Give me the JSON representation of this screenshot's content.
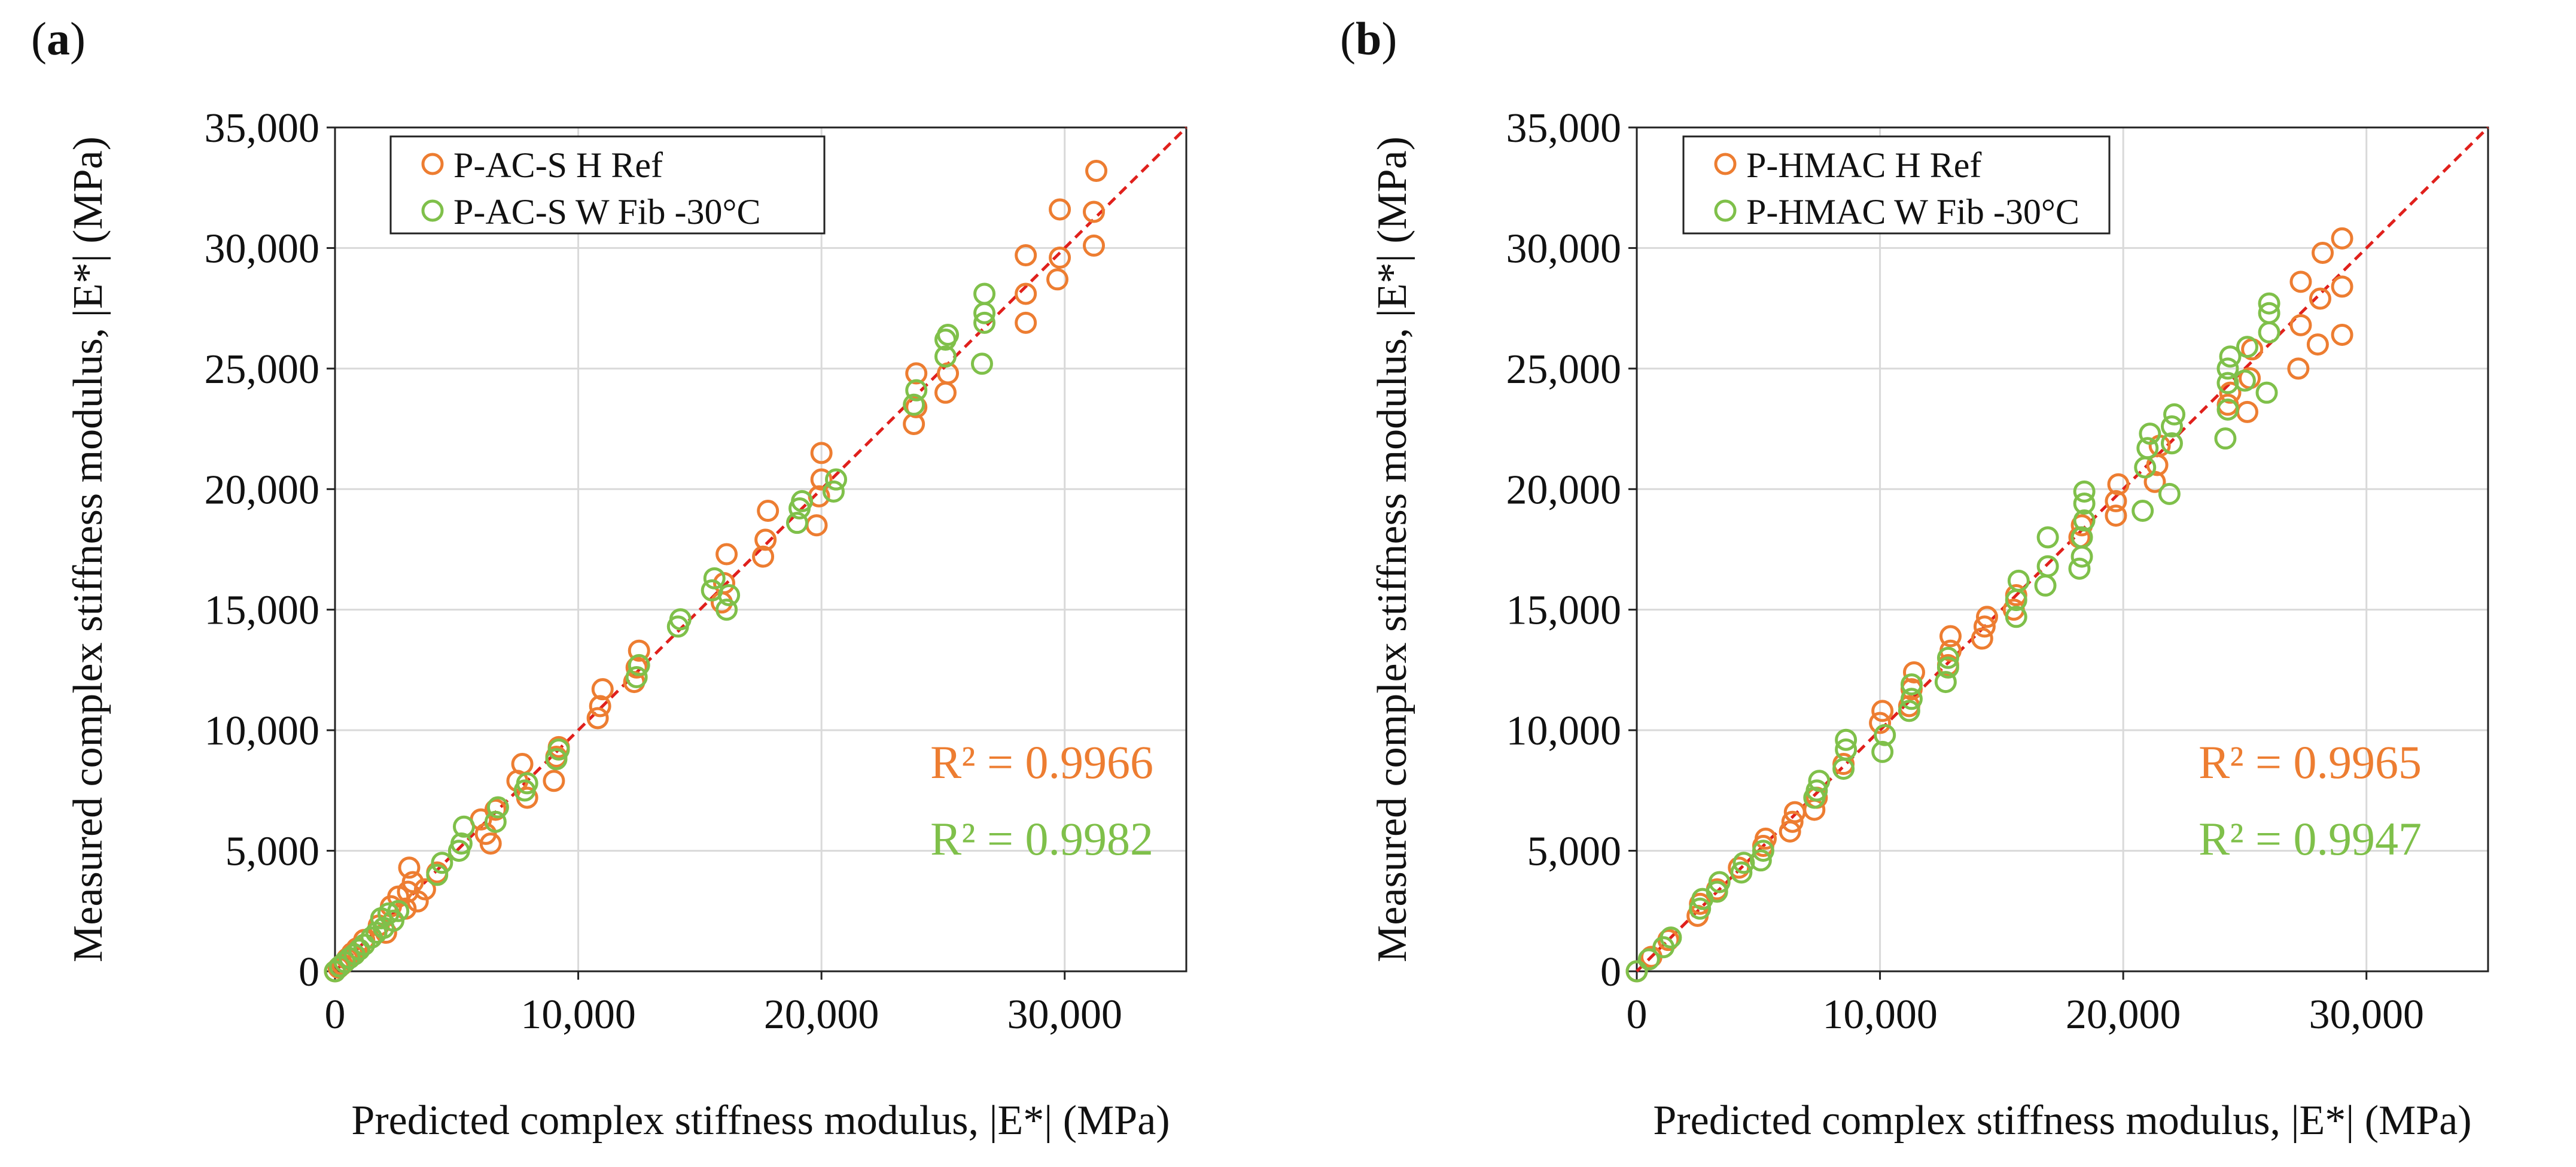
{
  "colors": {
    "ref": "#ed7d31",
    "fib": "#7fc04a",
    "fit": "#e0201c",
    "grid": "#d9d9d9"
  },
  "chart_data": [
    {
      "id": "a",
      "panel_label": "a",
      "type": "scatter",
      "title": "",
      "xlabel": "Predicted complex stiffness modulus, |E*| (MPa)",
      "ylabel": "Measured complex stiffness modulus, |E*| (MPa)",
      "xlim": [
        0,
        35000
      ],
      "ylim": [
        0,
        35000
      ],
      "x_ticks": [
        "0",
        "10,000",
        "20,000",
        "30,000"
      ],
      "y_ticks": [
        "0",
        "5,000",
        "10,000",
        "15,000",
        "20,000",
        "25,000",
        "30,000",
        "35,000"
      ],
      "grid": true,
      "legend_position": "top-left",
      "reference_line": "y = x",
      "series": [
        {
          "name": "P-AC-S H Ref",
          "color_key": "ref",
          "r2_label": "R² = 0.9966",
          "points": [
            [
              0,
              0
            ],
            [
              150,
              150
            ],
            [
              300,
              280
            ],
            [
              500,
              520
            ],
            [
              700,
              750
            ],
            [
              900,
              950
            ],
            [
              1200,
              1300
            ],
            [
              1500,
              1400
            ],
            [
              1800,
              1900
            ],
            [
              2100,
              1600
            ],
            [
              2300,
              2700
            ],
            [
              2600,
              3100
            ],
            [
              2900,
              2600
            ],
            [
              3000,
              3300
            ],
            [
              3050,
              4300
            ],
            [
              3200,
              3700
            ],
            [
              3400,
              2900
            ],
            [
              3700,
              3400
            ],
            [
              4200,
              4100
            ],
            [
              6000,
              6300
            ],
            [
              6200,
              5700
            ],
            [
              6400,
              5300
            ],
            [
              6600,
              6700
            ],
            [
              7500,
              7900
            ],
            [
              7700,
              8600
            ],
            [
              7900,
              7200
            ],
            [
              9000,
              7900
            ],
            [
              9100,
              8900
            ],
            [
              9200,
              9300
            ],
            [
              10800,
              10500
            ],
            [
              10900,
              11000
            ],
            [
              11000,
              11700
            ],
            [
              12300,
              12000
            ],
            [
              12400,
              12600
            ],
            [
              12500,
              13300
            ],
            [
              15900,
              15300
            ],
            [
              16000,
              16100
            ],
            [
              16100,
              17300
            ],
            [
              17600,
              17200
            ],
            [
              17700,
              17900
            ],
            [
              17800,
              19100
            ],
            [
              19800,
              18500
            ],
            [
              19900,
              19700
            ],
            [
              20000,
              20400
            ],
            [
              20000,
              21500
            ],
            [
              23800,
              22700
            ],
            [
              23900,
              23400
            ],
            [
              23900,
              24800
            ],
            [
              25100,
              24000
            ],
            [
              25200,
              24800
            ],
            [
              28400,
              26900
            ],
            [
              28400,
              28100
            ],
            [
              28400,
              29700
            ],
            [
              29700,
              28700
            ],
            [
              29800,
              29600
            ],
            [
              29800,
              31600
            ],
            [
              31200,
              30100
            ],
            [
              31200,
              31500
            ],
            [
              31300,
              33200
            ]
          ]
        },
        {
          "name": "P-AC-S W Fib -30°C",
          "color_key": "fib",
          "r2_label": "R² = 0.9982",
          "points": [
            [
              0,
              0
            ],
            [
              200,
              200
            ],
            [
              400,
              380
            ],
            [
              600,
              550
            ],
            [
              800,
              700
            ],
            [
              1000,
              900
            ],
            [
              1200,
              1100
            ],
            [
              1500,
              1400
            ],
            [
              1700,
              1600
            ],
            [
              1900,
              2200
            ],
            [
              2000,
              1800
            ],
            [
              2200,
              2400
            ],
            [
              2400,
              2100
            ],
            [
              2600,
              2500
            ],
            [
              4200,
              4000
            ],
            [
              4400,
              4500
            ],
            [
              5100,
              5000
            ],
            [
              5200,
              5300
            ],
            [
              5300,
              6000
            ],
            [
              6600,
              6200
            ],
            [
              6700,
              6800
            ],
            [
              7800,
              7500
            ],
            [
              7900,
              7800
            ],
            [
              9100,
              8800
            ],
            [
              9200,
              9200
            ],
            [
              12400,
              12200
            ],
            [
              12500,
              12700
            ],
            [
              14100,
              14300
            ],
            [
              14200,
              14600
            ],
            [
              15500,
              15800
            ],
            [
              15600,
              16300
            ],
            [
              16100,
              15000
            ],
            [
              16200,
              15600
            ],
            [
              19000,
              18600
            ],
            [
              19100,
              19200
            ],
            [
              19200,
              19500
            ],
            [
              20500,
              19900
            ],
            [
              20600,
              20400
            ],
            [
              23800,
              23500
            ],
            [
              23900,
              24100
            ],
            [
              25100,
              25500
            ],
            [
              25100,
              26200
            ],
            [
              25200,
              26400
            ],
            [
              26600,
              25200
            ],
            [
              26700,
              26900
            ],
            [
              26700,
              27300
            ],
            [
              26700,
              28100
            ]
          ]
        }
      ]
    },
    {
      "id": "b",
      "panel_label": "b",
      "type": "scatter",
      "title": "",
      "xlabel": "Predicted complex stiffness modulus, |E*| (MPa)",
      "ylabel": "Measured complex stiffness modulus, |E*| (MPa)",
      "xlim": [
        0,
        35000
      ],
      "ylim": [
        0,
        35000
      ],
      "x_ticks": [
        "0",
        "10,000",
        "20,000",
        "30,000"
      ],
      "y_ticks": [
        "0",
        "5,000",
        "10,000",
        "15,000",
        "20,000",
        "25,000",
        "30,000",
        "35,000"
      ],
      "grid": true,
      "legend_position": "top-left",
      "reference_line": "y = x",
      "series": [
        {
          "name": "P-HMAC H Ref",
          "color_key": "ref",
          "r2_label": "R² = 0.9965",
          "points": [
            [
              0,
              0
            ],
            [
              600,
              600
            ],
            [
              1300,
              1300
            ],
            [
              2500,
              2300
            ],
            [
              2600,
              2800
            ],
            [
              3300,
              3400
            ],
            [
              4200,
              4300
            ],
            [
              5200,
              5200
            ],
            [
              5300,
              5500
            ],
            [
              6300,
              5800
            ],
            [
              6400,
              6200
            ],
            [
              6500,
              6600
            ],
            [
              7300,
              6700
            ],
            [
              7400,
              7200
            ],
            [
              8500,
              8600
            ],
            [
              10000,
              10300
            ],
            [
              10100,
              10800
            ],
            [
              11200,
              11000
            ],
            [
              11300,
              11700
            ],
            [
              11400,
              12400
            ],
            [
              12800,
              12700
            ],
            [
              12900,
              13300
            ],
            [
              12900,
              13900
            ],
            [
              14200,
              13800
            ],
            [
              14300,
              14300
            ],
            [
              14400,
              14700
            ],
            [
              15500,
              15000
            ],
            [
              15600,
              15600
            ],
            [
              18200,
              18000
            ],
            [
              18300,
              18500
            ],
            [
              19700,
              18900
            ],
            [
              19700,
              19500
            ],
            [
              19800,
              20200
            ],
            [
              21300,
              20300
            ],
            [
              21400,
              21000
            ],
            [
              21500,
              21800
            ],
            [
              24300,
              23500
            ],
            [
              24400,
              24000
            ],
            [
              25100,
              23200
            ],
            [
              25200,
              24600
            ],
            [
              25300,
              25800
            ],
            [
              27200,
              25000
            ],
            [
              27300,
              26800
            ],
            [
              27300,
              28600
            ],
            [
              28000,
              26000
            ],
            [
              28100,
              27900
            ],
            [
              28200,
              29800
            ],
            [
              29000,
              26400
            ],
            [
              29000,
              28400
            ],
            [
              29000,
              30400
            ]
          ]
        },
        {
          "name": "P-HMAC W Fib -30°C",
          "color_key": "fib",
          "r2_label": "R² = 0.9947",
          "points": [
            [
              0,
              0
            ],
            [
              500,
              500
            ],
            [
              1100,
              1000
            ],
            [
              1400,
              1400
            ],
            [
              2600,
              2600
            ],
            [
              2700,
              3000
            ],
            [
              3300,
              3300
            ],
            [
              3400,
              3700
            ],
            [
              4300,
              4100
            ],
            [
              4400,
              4500
            ],
            [
              5100,
              4600
            ],
            [
              5200,
              5000
            ],
            [
              7300,
              7200
            ],
            [
              7400,
              7500
            ],
            [
              7500,
              7900
            ],
            [
              8500,
              8400
            ],
            [
              8600,
              9200
            ],
            [
              8600,
              9600
            ],
            [
              10100,
              9100
            ],
            [
              10200,
              9800
            ],
            [
              11200,
              10800
            ],
            [
              11300,
              11300
            ],
            [
              11300,
              11900
            ],
            [
              12700,
              12000
            ],
            [
              12800,
              12600
            ],
            [
              12800,
              13000
            ],
            [
              15600,
              14700
            ],
            [
              15600,
              15400
            ],
            [
              15700,
              16200
            ],
            [
              16800,
              16000
            ],
            [
              16900,
              16800
            ],
            [
              16900,
              18000
            ],
            [
              18200,
              16700
            ],
            [
              18300,
              17200
            ],
            [
              18300,
              18000
            ],
            [
              18400,
              18700
            ],
            [
              18400,
              19400
            ],
            [
              18400,
              19900
            ],
            [
              20800,
              19100
            ],
            [
              20900,
              20900
            ],
            [
              21000,
              21700
            ],
            [
              21100,
              22300
            ],
            [
              21900,
              19800
            ],
            [
              22000,
              21900
            ],
            [
              22000,
              22600
            ],
            [
              22100,
              23100
            ],
            [
              24200,
              22100
            ],
            [
              24300,
              23300
            ],
            [
              24300,
              24400
            ],
            [
              24300,
              25000
            ],
            [
              24400,
              25500
            ],
            [
              25000,
              24500
            ],
            [
              25100,
              25900
            ],
            [
              25900,
              24000
            ],
            [
              26000,
              26500
            ],
            [
              26000,
              27300
            ],
            [
              26000,
              27700
            ]
          ]
        }
      ]
    }
  ]
}
